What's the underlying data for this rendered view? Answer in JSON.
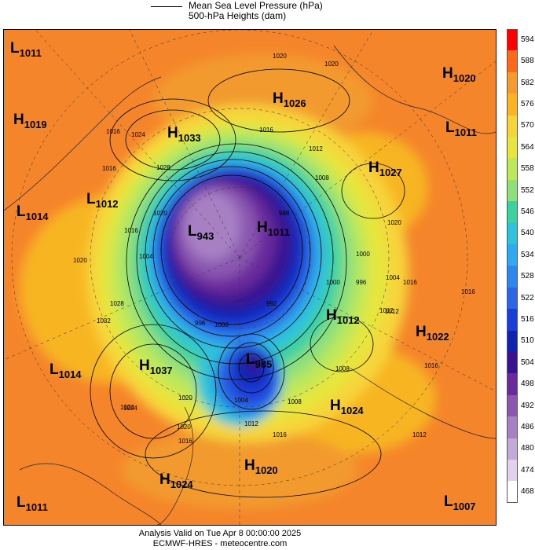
{
  "legend": {
    "line1": "Mean Sea Level Pressure (hPa)",
    "line2": "500-hPa Heights (dam)"
  },
  "colorbar": {
    "ticks": [
      "594",
      "588",
      "582",
      "576",
      "570",
      "564",
      "558",
      "552",
      "546",
      "540",
      "534",
      "528",
      "522",
      "516",
      "510",
      "504",
      "498",
      "492",
      "486",
      "480",
      "474",
      "468"
    ],
    "colors": [
      "#ff0000",
      "#ff6a1a",
      "#f59a2c",
      "#f7b524",
      "#f7d43a",
      "#e6e63c",
      "#bde85a",
      "#8fe07a",
      "#3dd1a0",
      "#2fc2dd",
      "#2fa9f0",
      "#2e87ec",
      "#2a66e6",
      "#1a3ed8",
      "#0e24b0",
      "#3a1290",
      "#6a2a9c",
      "#8a56b0",
      "#a780c4",
      "#c4a8d8",
      "#e0d2ec",
      "#ffffff"
    ]
  },
  "pressure_centers": [
    {
      "type": "L",
      "value": "1011"
    },
    {
      "type": "H",
      "value": "1019"
    },
    {
      "type": "L",
      "value": "1014"
    },
    {
      "type": "L",
      "value": "1012"
    },
    {
      "type": "H",
      "value": "1033"
    },
    {
      "type": "H",
      "value": "1026"
    },
    {
      "type": "H",
      "value": "1020"
    },
    {
      "type": "L",
      "value": "1011"
    },
    {
      "type": "H",
      "value": "1027"
    },
    {
      "type": "L",
      "value": "943"
    },
    {
      "type": "H",
      "value": "1011"
    },
    {
      "type": "H",
      "value": "1012"
    },
    {
      "type": "H",
      "value": "1022"
    },
    {
      "type": "L",
      "value": "1014"
    },
    {
      "type": "H",
      "value": "1037"
    },
    {
      "type": "L",
      "value": "985"
    },
    {
      "type": "H",
      "value": "1024"
    },
    {
      "type": "H",
      "value": "1020"
    },
    {
      "type": "H",
      "value": "1024"
    },
    {
      "type": "L",
      "value": "1011"
    },
    {
      "type": "L",
      "value": "1007"
    }
  ],
  "contour_labels": [
    "1020",
    "1016",
    "1024",
    "1028",
    "1016",
    "1012",
    "1020",
    "1020",
    "1016",
    "1020",
    "1016",
    "1004",
    "1012",
    "1008",
    "1000",
    "1020",
    "1032",
    "1028",
    "1024",
    "1020",
    "996",
    "1000",
    "1000",
    "996",
    "1004",
    "1016",
    "1016",
    "1012",
    "1008",
    "1016",
    "1012",
    "1004",
    "1016",
    "1012",
    "1020",
    "1024",
    "1008",
    "1016",
    "992",
    "988"
  ],
  "footer": {
    "line1": "Analysis Valid on Tue Apr  8 00:00:00 2025",
    "line2": "ECMWF-HRES - meteocentre.com"
  }
}
